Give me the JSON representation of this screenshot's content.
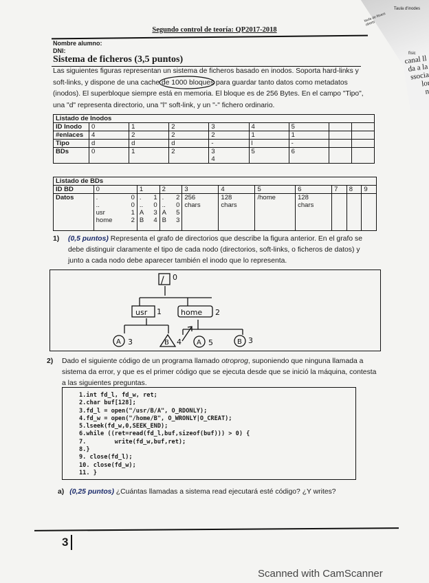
{
  "header": {
    "title": "Segundo control de teoría: QP2017-2018",
    "student_name_label": "Nombre alumno:",
    "dni_label": "DNI:"
  },
  "section": {
    "title": "Sistema de ficheros (3,5 puntos)",
    "intro": [
      "Las siguientes figuras representan un sistema de ficheros basado en inodos. Soporta hard-links y",
      "soft-links, y dispone de una cache de 1000 bloques para guardar tanto datos como metadatos",
      "(inodos). El superbloque siempre está en memoria. El bloque es de 256 Bytes.  En el campo \"Tipo\",",
      "una \"d\" representa directorio, una \"l\" soft-link, y un \"-\" fichero ordinario."
    ]
  },
  "inodes_table": {
    "title": "Listado de Inodos",
    "rows": [
      [
        "ID Inodo",
        "0",
        "1",
        "2",
        "3",
        "4",
        "5",
        "",
        ""
      ],
      [
        "#enlaces",
        "4",
        "2",
        "2",
        "2",
        "1",
        "1",
        "",
        ""
      ],
      [
        "Tipo",
        "d",
        "d",
        "d",
        "-",
        "l",
        "-",
        "",
        ""
      ],
      [
        "BDs",
        "0",
        "1",
        "2",
        "3\n4",
        "5",
        "6",
        "",
        ""
      ]
    ]
  },
  "bds_table": {
    "title": "Listado de BDs",
    "header": [
      "ID BD",
      "0",
      "1",
      "2",
      "3",
      "4",
      "5",
      "6",
      "7",
      "8",
      "9"
    ],
    "datos_label": "Datos",
    "bd0": [
      [
        ".",
        "0"
      ],
      [
        "..",
        "0"
      ],
      [
        "usr",
        "1"
      ],
      [
        "home",
        "2"
      ]
    ],
    "bd1": [
      [
        ".",
        "1"
      ],
      [
        "..",
        "0"
      ],
      [
        "A",
        "3"
      ],
      [
        "B",
        "4"
      ]
    ],
    "bd2": [
      [
        ".",
        "2"
      ],
      [
        "..",
        "0"
      ],
      [
        "A",
        "5"
      ],
      [
        "B",
        "3"
      ]
    ],
    "bd3": "256\nchars",
    "bd4": "128\nchars",
    "bd5": "/home",
    "bd6": "128\nchars"
  },
  "q1": {
    "number": "1)",
    "points": "(0,5 puntos)",
    "text": " Representa el grafo de directorios que describe la figura anterior. En el grafo se debe distinguir claramente el tipo de cada nodo (directorios, soft-links, o ficheros de datos) y junto a cada nodo debe aparecer también el inodo que lo representa."
  },
  "answer_graph": {
    "root": "/",
    "root_inode": "0",
    "usr": "usr",
    "usr_inode": "1",
    "home": "home",
    "home_inode": "2",
    "leaves": [
      {
        "name": "A",
        "inode": "3"
      },
      {
        "name": "B",
        "inode": "4"
      },
      {
        "name": "A",
        "inode": "5"
      },
      {
        "name": "B",
        "inode": "3"
      }
    ]
  },
  "q2": {
    "number": "2)",
    "text_pre": "Dado el siguiente código de un programa llamado ",
    "program": "otroprog",
    "text_post": ", suponiendo que ninguna llamada a sistema da error, y que es el primer código que se ejecuta desde que se inició la máquina, contesta a las siguientes preguntas."
  },
  "code": "1.int fd_l, fd_w, ret;\n2.char buf[128];\n3.fd_l = open(\"/usr/B/A\", O_RDONLY);\n4.fd_w = open(\"/home/B\", O_WRONLY|O_CREAT);\n5.lseek(fd_w,0,SEEK_END);\n6.while ((ret=read(fd_l,buf,sizeof(buf))) > 0) {\n7.        write(fd_w,buf,ret);\n8.}\n9. close(fd_l);\n10. close(fd_w);\n11. }",
  "qa": {
    "label": "a)",
    "points": "(0,25 puntos)",
    "text": " ¿Cuántas llamadas a sistema read ejecutará esté código? ¿Y writes?"
  },
  "page_number": "3",
  "side_page": {
    "lines": [
      "canal ll",
      "da a la",
      "ssocia",
      "lor",
      "nt"
    ],
    "labels": [
      "taula de fitxers oberts",
      "Taula d'inodes",
      "físic"
    ]
  },
  "watermark": "Scanned with CamScanner"
}
